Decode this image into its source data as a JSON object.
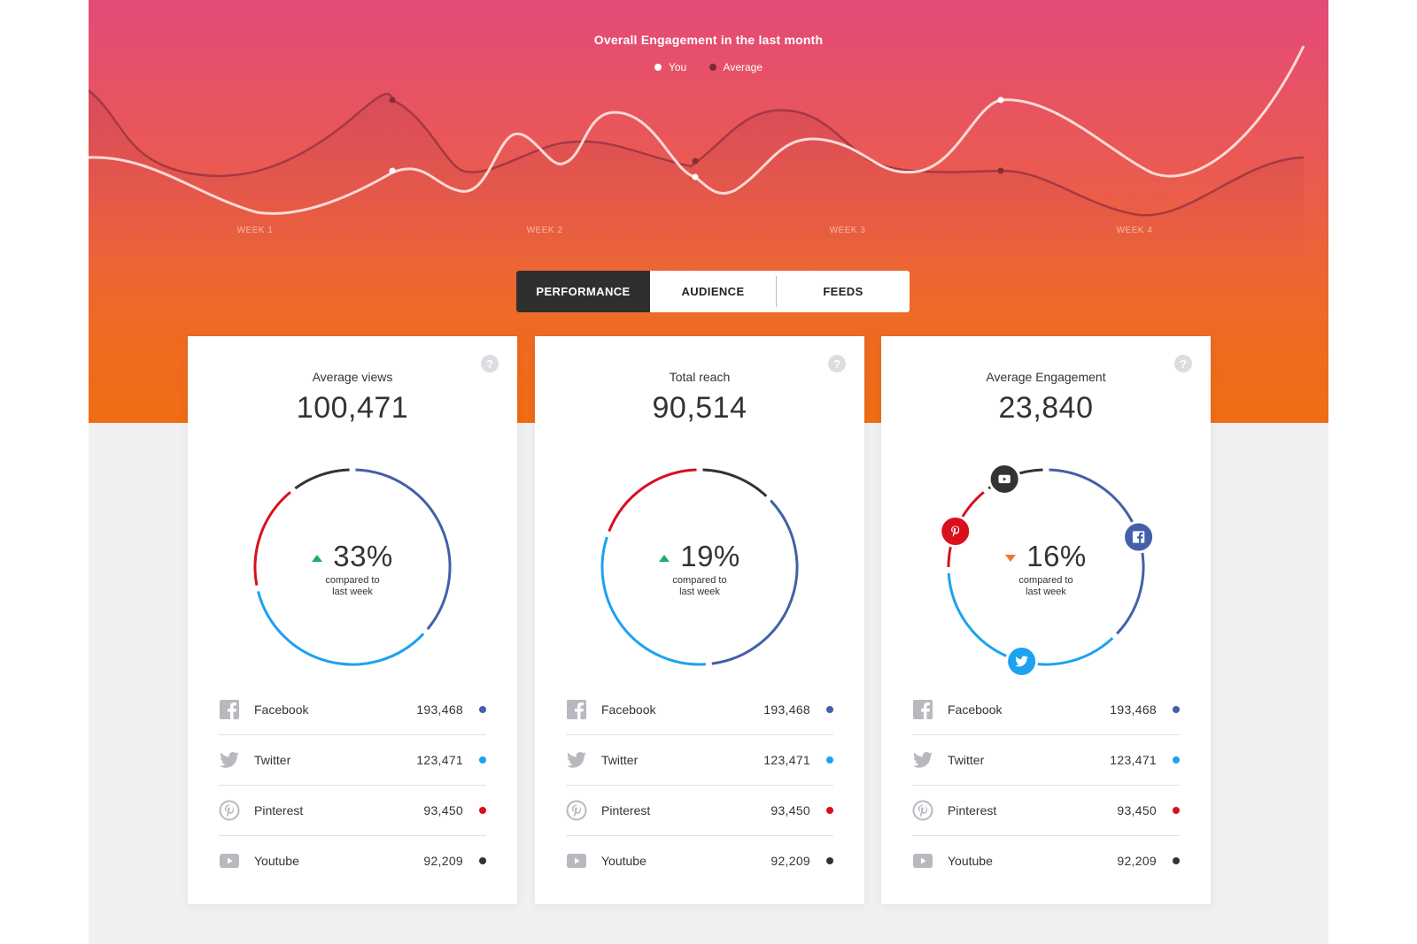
{
  "chart": {
    "title": "Overall Engagement in the last month",
    "legend": [
      {
        "name": "You",
        "color": "#ffffff"
      },
      {
        "name": "Average",
        "color": "#7a2a35"
      }
    ],
    "weeks": [
      "WEEK 1",
      "WEEK 2",
      "WEEK 3",
      "WEEK 4"
    ]
  },
  "tabs": [
    {
      "label": "PERFORMANCE",
      "active": true
    },
    {
      "label": "AUDIENCE",
      "active": false
    },
    {
      "label": "FEEDS",
      "active": false
    }
  ],
  "colors": {
    "facebook": "#4360a8",
    "twitter": "#1da1f2",
    "pinterest": "#d8101e",
    "youtube": "#333333",
    "up": "#1fae66",
    "down": "#ee7b2b"
  },
  "cards": [
    {
      "title": "Average views",
      "value": "100,471",
      "trend": "up",
      "percent": "33%",
      "compare_line1": "compared to",
      "compare_line2": "last week",
      "segments": [
        {
          "network": "facebook",
          "start": 0.005,
          "end": 0.36
        },
        {
          "network": "twitter",
          "start": 0.37,
          "end": 0.71
        },
        {
          "network": "pinterest",
          "start": 0.72,
          "end": 0.89
        },
        {
          "network": "youtube",
          "start": 0.9,
          "end": 0.995
        }
      ],
      "rows": [
        {
          "label": "Facebook",
          "value": "193,468",
          "icon": "facebook-icon",
          "network": "facebook"
        },
        {
          "label": "Twitter",
          "value": "123,471",
          "icon": "twitter-icon",
          "network": "twitter"
        },
        {
          "label": "Pinterest",
          "value": "93,450",
          "icon": "pinterest-icon",
          "network": "pinterest"
        },
        {
          "label": "Youtube",
          "value": "92,209",
          "icon": "youtube-icon",
          "network": "youtube"
        }
      ]
    },
    {
      "title": "Total reach",
      "value": "90,514",
      "trend": "up",
      "percent": "19%",
      "compare_line1": "compared to",
      "compare_line2": "last week",
      "segments": [
        {
          "network": "youtube",
          "start": 0.005,
          "end": 0.12
        },
        {
          "network": "facebook",
          "start": 0.13,
          "end": 0.48
        },
        {
          "network": "twitter",
          "start": 0.49,
          "end": 0.8
        },
        {
          "network": "pinterest",
          "start": 0.81,
          "end": 0.995
        }
      ],
      "rows": [
        {
          "label": "Facebook",
          "value": "193,468",
          "icon": "facebook-icon",
          "network": "facebook"
        },
        {
          "label": "Twitter",
          "value": "123,471",
          "icon": "twitter-icon",
          "network": "twitter"
        },
        {
          "label": "Pinterest",
          "value": "93,450",
          "icon": "pinterest-icon",
          "network": "pinterest"
        },
        {
          "label": "Youtube",
          "value": "92,209",
          "icon": "youtube-icon",
          "network": "youtube"
        }
      ]
    },
    {
      "title": "Average Engagement",
      "value": "23,840",
      "trend": "down",
      "percent": "16%",
      "compare_line1": "compared to",
      "compare_line2": "last week",
      "segments": [
        {
          "network": "facebook",
          "start": 0.005,
          "end": 0.37
        },
        {
          "network": "twitter",
          "start": 0.38,
          "end": 0.74
        },
        {
          "network": "pinterest",
          "start": 0.75,
          "end": 0.89
        },
        {
          "network": "youtube",
          "start": 0.9,
          "end": 0.995
        }
      ],
      "badges": [
        {
          "network": "youtube",
          "icon": "youtube-icon",
          "at": 0.93
        },
        {
          "network": "facebook",
          "icon": "facebook-icon",
          "at": 0.2
        },
        {
          "network": "twitter",
          "icon": "twitter-icon",
          "at": 0.54
        },
        {
          "network": "pinterest",
          "icon": "pinterest-icon",
          "at": 0.81
        }
      ],
      "rows": [
        {
          "label": "Facebook",
          "value": "193,468",
          "icon": "facebook-icon",
          "network": "facebook"
        },
        {
          "label": "Twitter",
          "value": "123,471",
          "icon": "twitter-icon",
          "network": "twitter"
        },
        {
          "label": "Pinterest",
          "value": "93,450",
          "icon": "pinterest-icon",
          "network": "pinterest"
        },
        {
          "label": "Youtube",
          "value": "92,209",
          "icon": "youtube-icon",
          "network": "youtube"
        }
      ]
    }
  ]
}
